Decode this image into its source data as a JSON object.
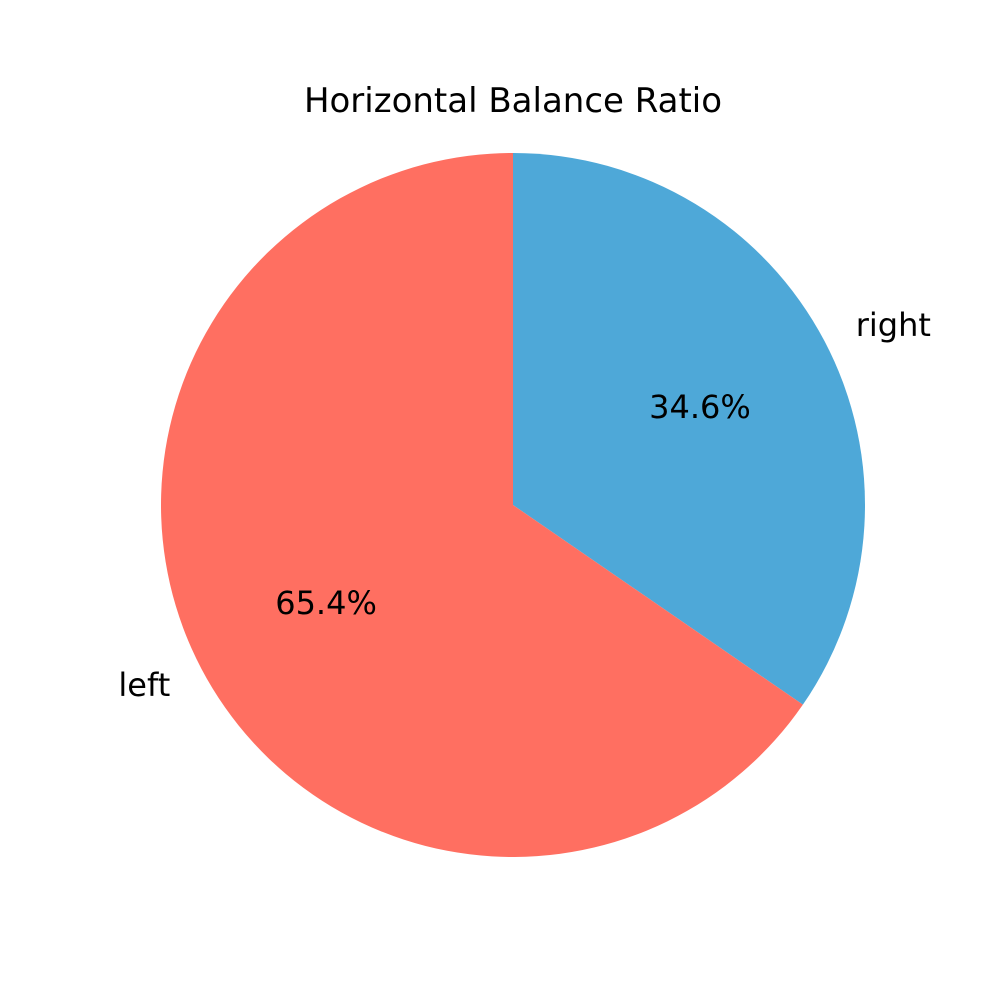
{
  "chart_data": {
    "type": "pie",
    "title": "Horizontal Balance Ratio",
    "start_angle_deg": 90,
    "direction": "clockwise",
    "legend": "none",
    "slices": [
      {
        "label": "right",
        "value": 34.6,
        "pct_label": "34.6%",
        "color": "#4EA8D8"
      },
      {
        "label": "left",
        "value": 65.4,
        "pct_label": "65.4%",
        "color": "#FF6F61"
      }
    ]
  }
}
